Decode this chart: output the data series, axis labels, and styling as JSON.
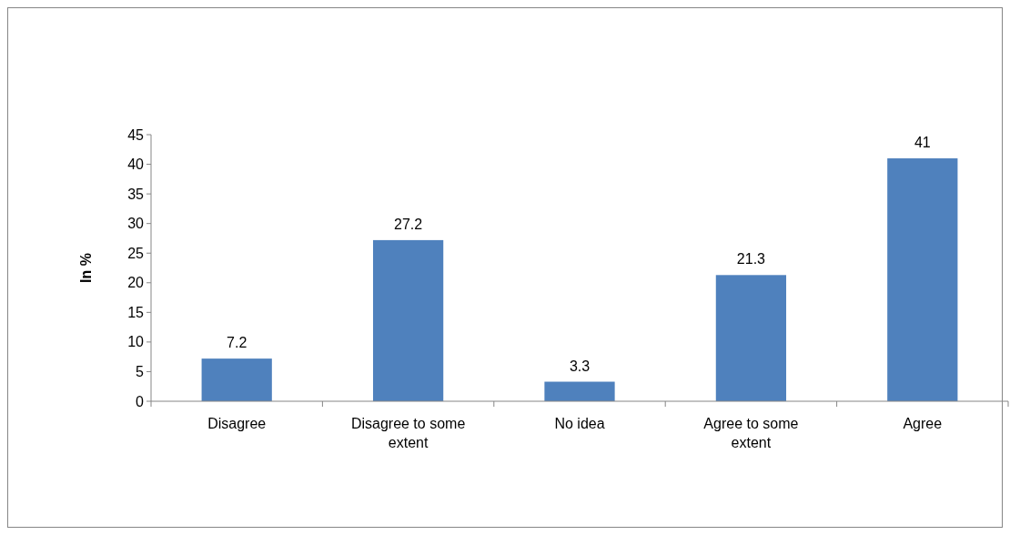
{
  "chart_data": {
    "type": "bar",
    "ylabel": "In %",
    "categories": [
      "Disagree",
      "Disagree to some extent",
      "No idea",
      "Agree to some extent",
      "Agree"
    ],
    "values": [
      7.2,
      27.2,
      3.3,
      21.3,
      41
    ],
    "color": "#4f81bd",
    "ylim": [
      0,
      45
    ],
    "yticks": [
      0,
      5,
      10,
      15,
      20,
      25,
      30,
      35,
      40,
      45
    ],
    "data_labels": true
  }
}
